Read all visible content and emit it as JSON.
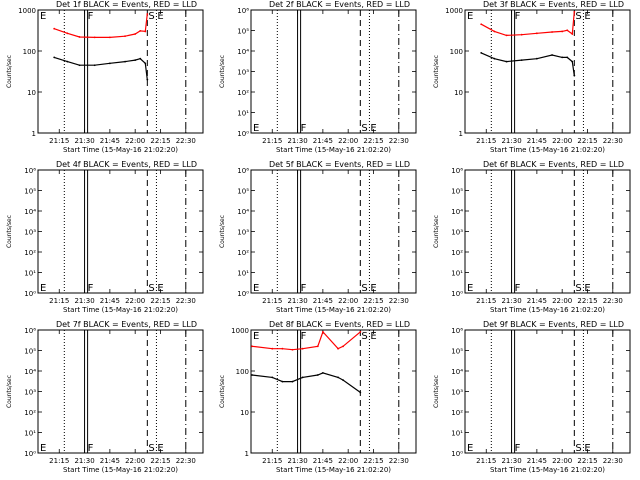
{
  "chart_data": [
    {
      "type": "line",
      "title": "Det 1f BLACK = Events, RED = LLD",
      "ylabel": "Counts/sec",
      "xlabel": "Start Time (15-May-16 21:02:20)",
      "ylim": [
        1,
        1000
      ],
      "y_ticks": [
        "1000",
        "100",
        "10",
        "1"
      ],
      "x_ticks": [
        "21:15",
        "21:30",
        "21:45",
        "22:00",
        "22:15",
        "22:30"
      ],
      "markers": [
        "E",
        "F",
        "S",
        "E"
      ],
      "series": [
        {
          "name": "LLD",
          "color": "#ff0000",
          "x": [
            21.2,
            21.33,
            21.45,
            21.6,
            21.75,
            21.9,
            22.0,
            22.05,
            22.1,
            22.12
          ],
          "values": [
            350,
            270,
            220,
            215,
            215,
            230,
            260,
            310,
            300,
            800
          ]
        },
        {
          "name": "Events",
          "color": "#000000",
          "x": [
            21.2,
            21.33,
            21.45,
            21.6,
            21.75,
            21.9,
            22.0,
            22.05,
            22.1,
            22.12
          ],
          "values": [
            70,
            55,
            45,
            45,
            50,
            55,
            60,
            65,
            50,
            20
          ]
        }
      ]
    },
    {
      "type": "line",
      "title": "Det 2f BLACK = Events, RED = LLD",
      "ylabel": "Counts/sec",
      "xlabel": "Start Time (15-May-16 21:02:20)",
      "ylim": [
        1,
        1000000
      ],
      "y_ticks": [
        "10⁶",
        "10⁵",
        "10⁴",
        "10³",
        "10²",
        "10¹",
        "10⁰"
      ],
      "x_ticks": [
        "21:15",
        "21:30",
        "21:45",
        "22:00",
        "22:15",
        "22:30"
      ],
      "markers": [
        "E",
        "F",
        "S",
        "E"
      ],
      "series": []
    },
    {
      "type": "line",
      "title": "Det 3f BLACK = Events, RED = LLD",
      "ylabel": "Counts/sec",
      "xlabel": "Start Time (15-May-16 21:02:20)",
      "ylim": [
        1,
        1000
      ],
      "y_ticks": [
        "1000",
        "100",
        "10",
        "1"
      ],
      "x_ticks": [
        "21:15",
        "21:30",
        "21:45",
        "22:00",
        "22:15",
        "22:30"
      ],
      "markers": [
        "E",
        "F",
        "S",
        "E"
      ],
      "series": [
        {
          "name": "LLD",
          "color": "#ff0000",
          "x": [
            21.2,
            21.33,
            21.45,
            21.6,
            21.75,
            21.9,
            22.0,
            22.05,
            22.1,
            22.12
          ],
          "values": [
            450,
            300,
            240,
            250,
            270,
            290,
            300,
            320,
            260,
            900
          ]
        },
        {
          "name": "Events",
          "color": "#000000",
          "x": [
            21.2,
            21.33,
            21.45,
            21.6,
            21.75,
            21.9,
            22.0,
            22.05,
            22.1,
            22.12
          ],
          "values": [
            90,
            65,
            55,
            60,
            65,
            80,
            70,
            70,
            55,
            25
          ]
        }
      ]
    },
    {
      "type": "line",
      "title": "Det 4f BLACK = Events, RED = LLD",
      "ylabel": "Counts/sec",
      "xlabel": "Start Time (15-May-16 21:02:20)",
      "ylim": [
        1,
        1000000
      ],
      "y_ticks": [
        "10⁶",
        "10⁵",
        "10⁴",
        "10³",
        "10²",
        "10¹",
        "10⁰"
      ],
      "x_ticks": [
        "21:15",
        "21:30",
        "21:45",
        "22:00",
        "22:15",
        "22:30"
      ],
      "markers": [
        "E",
        "F",
        "S",
        "E"
      ],
      "series": []
    },
    {
      "type": "line",
      "title": "Det 5f BLACK = Events, RED = LLD",
      "ylabel": "Counts/sec",
      "xlabel": "Start Time (15-May-16 21:02:20)",
      "ylim": [
        1,
        1000000
      ],
      "y_ticks": [
        "10⁶",
        "10⁵",
        "10⁴",
        "10³",
        "10²",
        "10¹",
        "10⁰"
      ],
      "x_ticks": [
        "21:15",
        "21:30",
        "21:45",
        "22:00",
        "22:15",
        "22:30"
      ],
      "markers": [
        "E",
        "F",
        "S",
        "E"
      ],
      "series": []
    },
    {
      "type": "line",
      "title": "Det 6f BLACK = Events, RED = LLD",
      "ylabel": "Counts/sec",
      "xlabel": "Start Time (15-May-16 21:02:20)",
      "ylim": [
        1,
        1000000
      ],
      "y_ticks": [
        "10⁶",
        "10⁵",
        "10⁴",
        "10³",
        "10²",
        "10¹",
        "10⁰"
      ],
      "x_ticks": [
        "21:15",
        "21:30",
        "21:45",
        "22:00",
        "22:15",
        "22:30"
      ],
      "markers": [
        "E",
        "F",
        "S",
        "E"
      ],
      "series": []
    },
    {
      "type": "line",
      "title": "Det 7f BLACK = Events, RED = LLD",
      "ylabel": "Counts/sec",
      "xlabel": "Start Time (15-May-16 21:02:20)",
      "ylim": [
        1,
        1000000
      ],
      "y_ticks": [
        "10⁶",
        "10⁵",
        "10⁴",
        "10³",
        "10²",
        "10¹",
        "10⁰"
      ],
      "x_ticks": [
        "21:15",
        "21:30",
        "21:45",
        "22:00",
        "22:15",
        "22:30"
      ],
      "markers": [
        "E",
        "F",
        "S",
        "E"
      ],
      "series": []
    },
    {
      "type": "line",
      "title": "Det 8f BLACK = Events, RED = LLD",
      "ylabel": "Counts/sec",
      "xlabel": "Start Time (15-May-16 21:02:20)",
      "ylim": [
        1,
        1000
      ],
      "y_ticks": [
        "1000",
        "100",
        "10",
        "1"
      ],
      "x_ticks": [
        "21:15",
        "21:30",
        "21:45",
        "22:00",
        "22:15",
        "22:30"
      ],
      "markers": [
        "E",
        "F",
        "S",
        "E"
      ],
      "series": [
        {
          "name": "LLD",
          "color": "#ff0000",
          "x": [
            21.05,
            21.25,
            21.35,
            21.45,
            21.55,
            21.7,
            21.75,
            21.9,
            21.95,
            22.12
          ],
          "values": [
            400,
            350,
            350,
            330,
            350,
            400,
            900,
            350,
            400,
            900
          ]
        },
        {
          "name": "Events",
          "color": "#000000",
          "x": [
            21.05,
            21.25,
            21.35,
            21.45,
            21.55,
            21.7,
            21.75,
            21.9,
            21.95,
            22.12
          ],
          "values": [
            80,
            70,
            55,
            55,
            70,
            80,
            90,
            70,
            60,
            30
          ]
        }
      ]
    },
    {
      "type": "line",
      "title": "Det 9f BLACK = Events, RED = LLD",
      "ylabel": "Counts/sec",
      "xlabel": "Start Time (15-May-16 21:02:20)",
      "ylim": [
        1,
        1000000
      ],
      "y_ticks": [
        "10⁶",
        "10⁵",
        "10⁴",
        "10³",
        "10²",
        "10¹",
        "10⁰"
      ],
      "x_ticks": [
        "21:15",
        "21:30",
        "21:45",
        "22:00",
        "22:15",
        "22:30"
      ],
      "markers": [
        "E",
        "F",
        "S",
        "E"
      ],
      "series": []
    }
  ]
}
